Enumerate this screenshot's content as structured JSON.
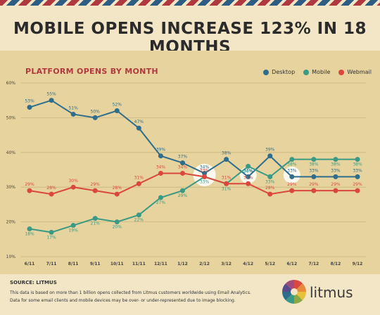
{
  "headline": "MOBILE OPENS INCREASE 123% IN 18 MONTHS",
  "colors": {
    "desktop": "#2e6d8c",
    "mobile": "#3a9a86",
    "webmail": "#d9473f",
    "accent_red": "#b0393f"
  },
  "chart_data": {
    "type": "line",
    "title": "PLATFORM OPENS BY MONTH",
    "categories": [
      "6/11",
      "7/11",
      "8/11",
      "9/11",
      "10/11",
      "11/11",
      "12/11",
      "1/12",
      "2/12",
      "3/12",
      "4/12",
      "5/12",
      "6/12",
      "7/12",
      "8/12",
      "9/12"
    ],
    "y_ticks": [
      "10%",
      "20%",
      "30%",
      "40%",
      "50%",
      "60%"
    ],
    "ylim": [
      10,
      60
    ],
    "grid": true,
    "legend_position": "top-right",
    "series": [
      {
        "name": "Desktop",
        "values": [
          53,
          55,
          51,
          50,
          52,
          47,
          39,
          37,
          34,
          38,
          33,
          39,
          33,
          33,
          33,
          33
        ]
      },
      {
        "name": "Mobile",
        "values": [
          18,
          17,
          19,
          21,
          20,
          22,
          27,
          29,
          33,
          31,
          36,
          33,
          38,
          38,
          38,
          38
        ]
      },
      {
        "name": "Webmail",
        "values": [
          29,
          28,
          30,
          29,
          28,
          31,
          34,
          34,
          33,
          31,
          31,
          28,
          29,
          29,
          29,
          29
        ]
      }
    ],
    "highlight_indices": [
      8,
      10,
      12
    ]
  },
  "footer": {
    "source_title": "SOURCE: LITMUS",
    "note_line1": "This data is based on more than 1 billion opens collected from Litmus customers worldwide using Email Analytics.",
    "note_line2": "Data for some email clients and mobile devices may be over- or under-represented due to image blocking."
  },
  "logo": {
    "text": "litmus"
  }
}
